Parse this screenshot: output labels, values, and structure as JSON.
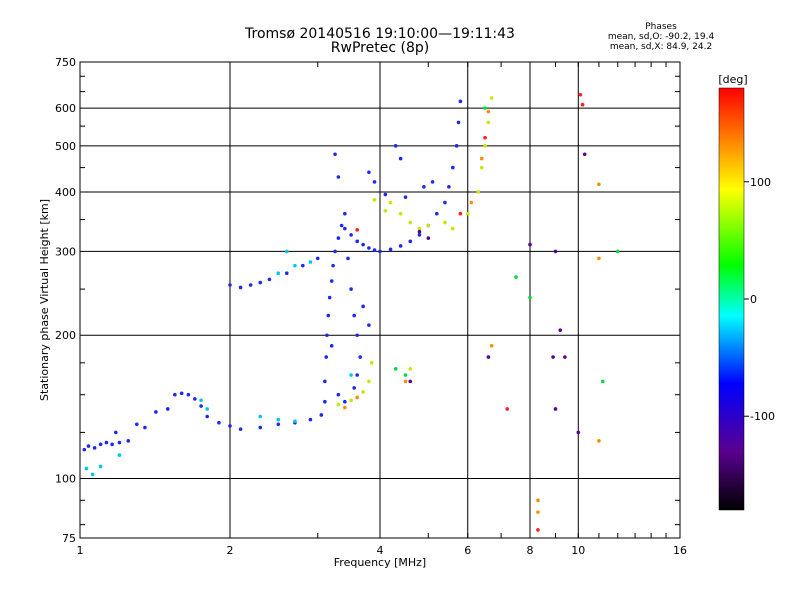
{
  "header": {
    "title": "Tromsø 20140516 19:10:00—19:11:43",
    "subtitle": "RwPretec (8p)"
  },
  "stats": {
    "heading": "Phases",
    "line_o": "mean, sd,O: -90.2, 19.4",
    "line_x": "mean, sd,X: 84.9, 24.2"
  },
  "chart_data": {
    "type": "scatter",
    "xlabel": "Frequency [MHz]",
    "ylabel": "Stationary phase Virtual Height [km]",
    "x_scale": "log",
    "y_scale": "log",
    "xlim": [
      1,
      16
    ],
    "ylim": [
      75,
      750
    ],
    "x_ticks": [
      1,
      2,
      4,
      6,
      8,
      10,
      16
    ],
    "y_ticks": [
      75,
      100,
      200,
      300,
      400,
      500,
      600,
      750
    ],
    "grid": true,
    "colorbar": {
      "label": "[deg]",
      "range": [
        -180,
        180
      ],
      "ticks": [
        100,
        0,
        -100
      ],
      "colors": [
        "#000000",
        "#5a0090",
        "#0000ff",
        "#00ffff",
        "#00ff00",
        "#ffff00",
        "#ff0000"
      ]
    },
    "series": [
      {
        "color": "#1e28f0",
        "values": [
          [
            1.02,
            115
          ],
          [
            1.04,
            117
          ],
          [
            1.07,
            116
          ],
          [
            1.1,
            118
          ],
          [
            1.13,
            119
          ],
          [
            1.16,
            118
          ],
          [
            1.2,
            119
          ],
          [
            1.25,
            120
          ],
          [
            1.18,
            125
          ],
          [
            1.3,
            130
          ],
          [
            1.35,
            128
          ],
          [
            1.42,
            138
          ],
          [
            1.5,
            140
          ],
          [
            1.55,
            150
          ],
          [
            1.6,
            151
          ],
          [
            1.65,
            150
          ],
          [
            1.7,
            147
          ],
          [
            1.75,
            142
          ],
          [
            1.8,
            135
          ],
          [
            1.9,
            131
          ],
          [
            2.0,
            129
          ],
          [
            2.1,
            127
          ],
          [
            2.3,
            128
          ],
          [
            2.5,
            130
          ],
          [
            2.7,
            131
          ],
          [
            2.9,
            133
          ],
          [
            3.05,
            136
          ],
          [
            3.1,
            145
          ],
          [
            3.1,
            160
          ],
          [
            3.12,
            180
          ],
          [
            3.13,
            200
          ],
          [
            3.15,
            220
          ],
          [
            3.17,
            240
          ],
          [
            3.2,
            260
          ],
          [
            3.22,
            280
          ],
          [
            3.25,
            300
          ],
          [
            3.3,
            320
          ],
          [
            3.35,
            340
          ],
          [
            3.4,
            335
          ],
          [
            3.5,
            325
          ],
          [
            3.6,
            315
          ],
          [
            3.7,
            310
          ],
          [
            3.8,
            305
          ],
          [
            3.9,
            302
          ],
          [
            4.0,
            300
          ],
          [
            4.2,
            303
          ],
          [
            4.4,
            308
          ],
          [
            4.6,
            315
          ],
          [
            4.8,
            325
          ],
          [
            5.0,
            340
          ],
          [
            5.2,
            360
          ],
          [
            5.4,
            380
          ],
          [
            5.5,
            410
          ],
          [
            5.6,
            450
          ],
          [
            5.7,
            500
          ],
          [
            5.75,
            560
          ],
          [
            5.8,
            620
          ],
          [
            4.3,
            500
          ],
          [
            4.4,
            470
          ],
          [
            3.25,
            480
          ],
          [
            3.3,
            430
          ],
          [
            3.4,
            360
          ],
          [
            3.45,
            290
          ],
          [
            3.5,
            250
          ],
          [
            3.55,
            220
          ],
          [
            3.6,
            200
          ],
          [
            3.65,
            180
          ],
          [
            3.6,
            165
          ],
          [
            3.55,
            155
          ],
          [
            2.0,
            255
          ],
          [
            2.1,
            252
          ],
          [
            2.2,
            255
          ],
          [
            2.3,
            258
          ],
          [
            2.4,
            262
          ],
          [
            2.6,
            270
          ],
          [
            2.8,
            280
          ],
          [
            3.0,
            290
          ],
          [
            3.8,
            440
          ],
          [
            3.9,
            420
          ],
          [
            4.1,
            395
          ],
          [
            3.3,
            150
          ],
          [
            3.4,
            145
          ],
          [
            3.2,
            190
          ],
          [
            3.7,
            230
          ],
          [
            3.8,
            210
          ],
          [
            4.5,
            390
          ],
          [
            4.9,
            410
          ],
          [
            5.1,
            420
          ]
        ]
      },
      {
        "color": "#00c8e6",
        "values": [
          [
            1.03,
            105
          ],
          [
            1.06,
            102
          ],
          [
            1.1,
            106
          ],
          [
            1.2,
            112
          ],
          [
            2.6,
            300
          ],
          [
            2.7,
            280
          ],
          [
            2.9,
            285
          ],
          [
            2.5,
            270
          ],
          [
            2.3,
            135
          ],
          [
            2.5,
            133
          ],
          [
            2.7,
            132
          ],
          [
            1.75,
            146
          ],
          [
            1.8,
            140
          ],
          [
            3.5,
            165
          ]
        ]
      },
      {
        "color": "#c8e600",
        "values": [
          [
            3.3,
            143
          ],
          [
            3.5,
            146
          ],
          [
            3.7,
            152
          ],
          [
            3.8,
            160
          ],
          [
            3.85,
            175
          ],
          [
            4.6,
            170
          ],
          [
            4.2,
            380
          ],
          [
            4.4,
            360
          ],
          [
            4.6,
            345
          ],
          [
            4.8,
            335
          ],
          [
            5.0,
            340
          ],
          [
            5.4,
            345
          ],
          [
            5.6,
            335
          ],
          [
            6.0,
            360
          ],
          [
            6.3,
            400
          ],
          [
            6.4,
            450
          ],
          [
            6.5,
            500
          ],
          [
            6.6,
            560
          ],
          [
            6.7,
            630
          ],
          [
            3.9,
            385
          ],
          [
            4.1,
            365
          ]
        ]
      },
      {
        "color": "#ff8c00",
        "values": [
          [
            3.4,
            141
          ],
          [
            3.6,
            148
          ],
          [
            6.1,
            380
          ],
          [
            6.4,
            470
          ],
          [
            6.6,
            590
          ],
          [
            6.7,
            190
          ],
          [
            4.5,
            160
          ],
          [
            8.3,
            90
          ],
          [
            8.3,
            85
          ],
          [
            10.2,
            610
          ],
          [
            11,
            415
          ],
          [
            11,
            290
          ],
          [
            11,
            120
          ]
        ]
      },
      {
        "color": "#5a0090",
        "values": [
          [
            4.8,
            330
          ],
          [
            5.0,
            320
          ],
          [
            4.6,
            160
          ],
          [
            6.6,
            180
          ],
          [
            9.2,
            205
          ],
          [
            9.4,
            180
          ],
          [
            8.9,
            180
          ],
          [
            9.0,
            140
          ],
          [
            10.0,
            125
          ],
          [
            10.3,
            480
          ],
          [
            8.0,
            310
          ],
          [
            9.0,
            300
          ]
        ]
      },
      {
        "color": "#00dc3c",
        "values": [
          [
            4.5,
            165
          ],
          [
            4.3,
            170
          ],
          [
            7.5,
            265
          ],
          [
            8.0,
            240
          ],
          [
            6.5,
            600
          ],
          [
            12,
            300
          ],
          [
            11.2,
            160
          ]
        ]
      },
      {
        "color": "#ff2020",
        "values": [
          [
            3.6,
            333
          ],
          [
            5.8,
            360
          ],
          [
            6.5,
            520
          ],
          [
            7.2,
            140
          ],
          [
            8.3,
            78
          ],
          [
            10.1,
            640
          ],
          [
            10.2,
            610
          ]
        ]
      }
    ]
  }
}
